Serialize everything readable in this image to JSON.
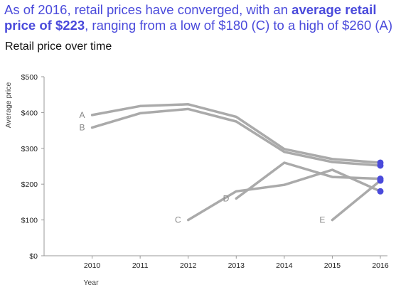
{
  "headline": {
    "part1": "As of 2016, retail prices have converged, with an ",
    "bold": "average retail price of $223",
    "part2": ", ranging from a low of $180 (C) to a high of $260 (A)",
    "color": "#4a4adb"
  },
  "chart_data": {
    "type": "line",
    "title": "Retail price over time",
    "xlabel": "Year",
    "ylabel": "Average price",
    "x": [
      2010,
      2011,
      2012,
      2013,
      2014,
      2015,
      2016
    ],
    "xlim": [
      2009,
      2016
    ],
    "ylim": [
      0,
      500
    ],
    "yticks": [
      0,
      100,
      200,
      300,
      400,
      500
    ],
    "ytick_labels": [
      "$0",
      "$100",
      "$200",
      "$300",
      "$400",
      "$500"
    ],
    "grid": false,
    "line_color": "#aaaaaa",
    "endpoint_color": "#4a4adb",
    "series": [
      {
        "name": "A",
        "points": [
          [
            2010,
            393
          ],
          [
            2011,
            418
          ],
          [
            2012,
            423
          ],
          [
            2013,
            388
          ],
          [
            2014,
            298
          ],
          [
            2015,
            270
          ],
          [
            2016,
            260
          ]
        ]
      },
      {
        "name": "B",
        "points": [
          [
            2010,
            358
          ],
          [
            2011,
            398
          ],
          [
            2012,
            410
          ],
          [
            2013,
            375
          ],
          [
            2014,
            290
          ],
          [
            2015,
            262
          ],
          [
            2016,
            252
          ]
        ]
      },
      {
        "name": "C",
        "points": [
          [
            2012,
            100
          ],
          [
            2013,
            180
          ],
          [
            2014,
            198
          ],
          [
            2015,
            240
          ],
          [
            2016,
            180
          ]
        ]
      },
      {
        "name": "D",
        "points": [
          [
            2013,
            160
          ],
          [
            2014,
            260
          ],
          [
            2015,
            220
          ],
          [
            2016,
            215
          ]
        ]
      },
      {
        "name": "E",
        "points": [
          [
            2015,
            100
          ],
          [
            2016,
            210
          ]
        ]
      }
    ]
  }
}
